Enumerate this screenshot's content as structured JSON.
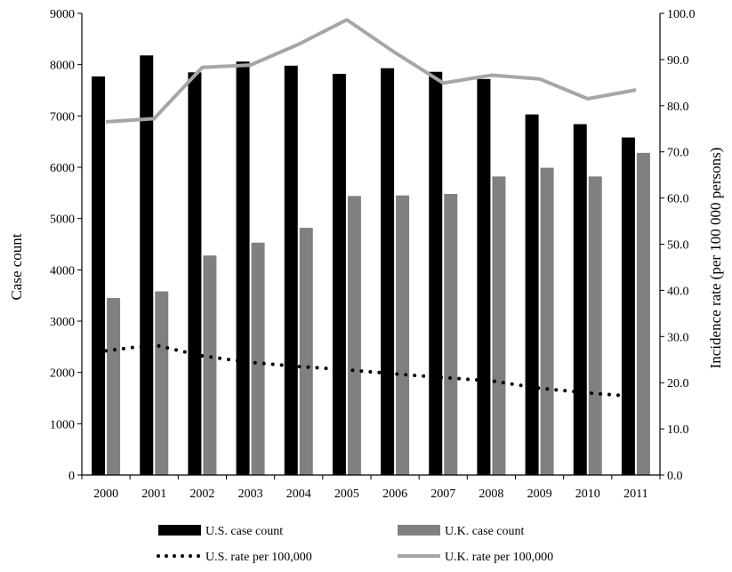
{
  "chart_data": {
    "type": "bar",
    "title": "",
    "categories": [
      "2000",
      "2001",
      "2002",
      "2003",
      "2004",
      "2005",
      "2006",
      "2007",
      "2008",
      "2009",
      "2010",
      "2011"
    ],
    "bar_series": [
      {
        "name": "U.S. case count",
        "color": "#000000",
        "values": [
          7770,
          8180,
          7850,
          8060,
          7980,
          7820,
          7930,
          7860,
          7720,
          7030,
          6840,
          6580
        ]
      },
      {
        "name": "U.K. case count",
        "color": "#808080",
        "values": [
          3450,
          3580,
          4280,
          4530,
          4820,
          5440,
          5450,
          5480,
          5820,
          5990,
          5820,
          6280
        ]
      }
    ],
    "line_series": [
      {
        "name": "U.S. rate per 100,000",
        "color": "#000000",
        "style": "dotted",
        "values": [
          26.9,
          28.2,
          25.8,
          24.4,
          23.5,
          22.8,
          21.9,
          21.1,
          20.4,
          18.8,
          17.8,
          17.0
        ]
      },
      {
        "name": "U.K. rate per 100,000",
        "color": "#a6a6a6",
        "style": "solid",
        "values": [
          76.5,
          77.2,
          88.3,
          88.8,
          93.3,
          98.6,
          91.5,
          84.9,
          86.6,
          85.8,
          81.5,
          83.4
        ]
      }
    ],
    "ylabel": "Case count",
    "y_ticks": [
      "0",
      "1000",
      "2000",
      "3000",
      "4000",
      "5000",
      "6000",
      "7000",
      "8000",
      "9000"
    ],
    "ylim": [
      0,
      9000
    ],
    "y2label": "Incidence rate (per 100 000 persons)",
    "y2_ticks": [
      "0.0",
      "10.0",
      "20.0",
      "30.0",
      "40.0",
      "50.0",
      "60.0",
      "70.0",
      "80.0",
      "90.0",
      "100.0"
    ],
    "y2lim": [
      0,
      100
    ],
    "grid": false,
    "legend_position": "bottom"
  }
}
